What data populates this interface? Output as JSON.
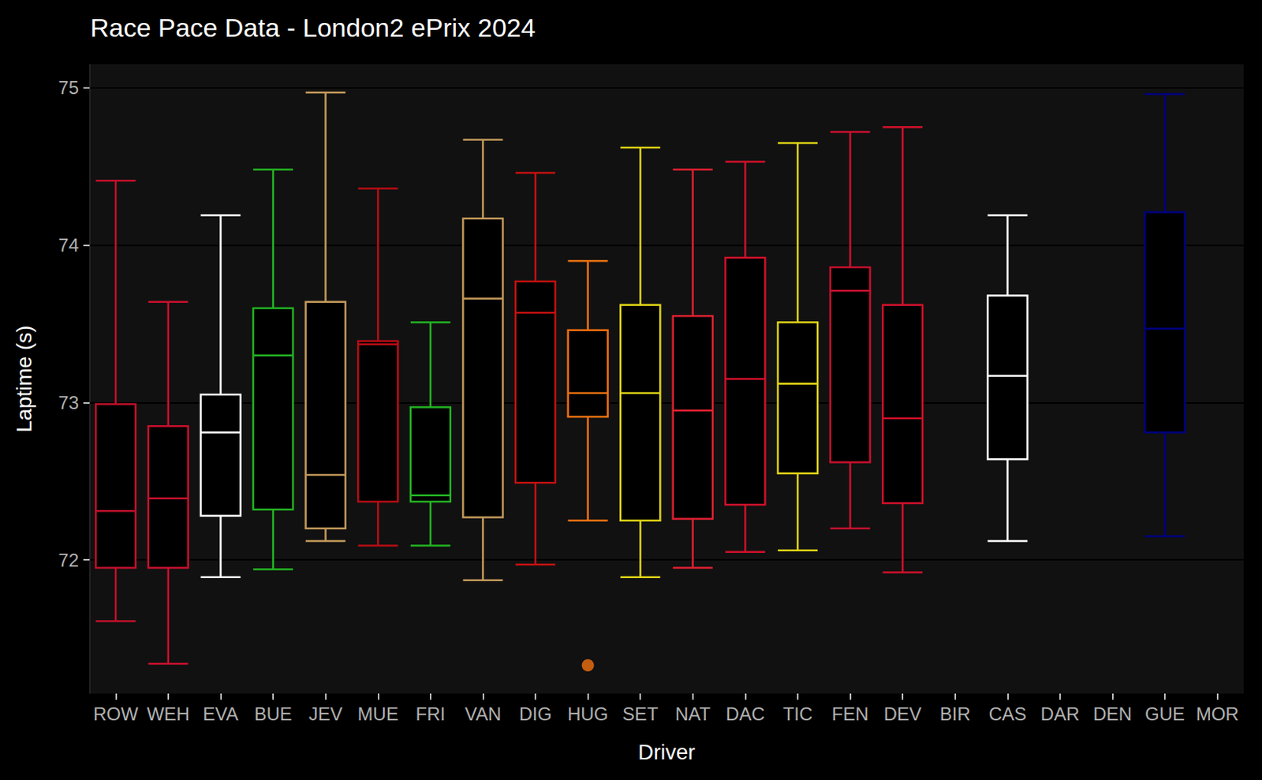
{
  "chart_data": {
    "type": "boxplot",
    "title": "Race Pace Data - London2 ePrix 2024",
    "x_label": "Driver",
    "y_label": "Laptime (s)",
    "categories": [
      "ROW",
      "WEH",
      "EVA",
      "BUE",
      "JEV",
      "MUE",
      "FRI",
      "VAN",
      "DIG",
      "HUG",
      "SET",
      "NAT",
      "DAC",
      "TIC",
      "FEN",
      "DEV",
      "BIR",
      "CAS",
      "DAR",
      "DEN",
      "GUE",
      "MOR"
    ],
    "values": [
      [
        71.61,
        71.95,
        72.31,
        72.99,
        74.41
      ],
      [
        71.34,
        71.95,
        72.39,
        72.85,
        73.64
      ],
      [
        71.89,
        72.28,
        72.81,
        73.05,
        74.19
      ],
      [
        71.94,
        72.32,
        73.3,
        73.6,
        74.48
      ],
      [
        72.12,
        72.2,
        72.54,
        73.64,
        74.97
      ],
      [
        72.09,
        72.37,
        73.37,
        73.39,
        74.36
      ],
      [
        72.09,
        72.37,
        72.41,
        72.97,
        73.51
      ],
      [
        71.87,
        72.27,
        73.66,
        74.17,
        74.67
      ],
      [
        71.97,
        72.49,
        73.57,
        73.77,
        74.46
      ],
      [
        72.25,
        72.91,
        73.06,
        73.46,
        73.9
      ],
      [
        71.89,
        72.25,
        73.06,
        73.62,
        74.62
      ],
      [
        71.95,
        72.26,
        72.95,
        73.55,
        74.48
      ],
      [
        72.05,
        72.35,
        73.15,
        73.92,
        74.53
      ],
      [
        72.06,
        72.55,
        73.12,
        73.51,
        74.65
      ],
      [
        72.2,
        72.62,
        73.71,
        73.86,
        74.72
      ],
      [
        71.92,
        72.36,
        72.9,
        73.62,
        74.75
      ],
      null,
      [
        72.12,
        72.64,
        73.17,
        73.68,
        74.19
      ],
      null,
      null,
      [
        72.15,
        72.81,
        73.47,
        74.21,
        74.96
      ],
      null
    ],
    "colors": [
      "#c0102a",
      "#c8102e",
      "#ffffff",
      "#22b422",
      "#c49a5a",
      "#b80c14",
      "#22b422",
      "#c49a5a",
      "#c41010",
      "#f07010",
      "#e0d414",
      "#e02030",
      "#d0102a",
      "#e0d414",
      "#c8102e",
      "#d0102a",
      null,
      "#ffffff",
      null,
      null,
      "#000080",
      null
    ],
    "outliers": [
      {
        "category": "HUG",
        "value": 71.33
      }
    ],
    "ylim": [
      71.15,
      75.15
    ],
    "yticks": [
      72,
      73,
      74,
      75
    ],
    "grid": true
  }
}
